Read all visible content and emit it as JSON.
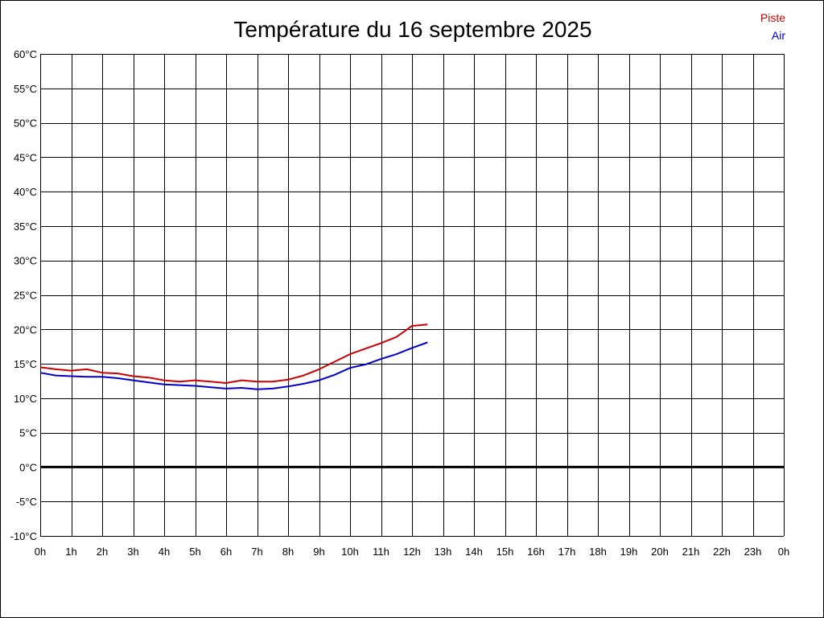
{
  "chart_data": {
    "type": "line",
    "title": "Température du 16 septembre 2025",
    "xlabel": "",
    "ylabel": "",
    "x_unit": "hour",
    "xlim": [
      0,
      24
    ],
    "ylim": [
      -10,
      60
    ],
    "grid": true,
    "legend_position": "top-right",
    "x_ticks": [
      0,
      1,
      2,
      3,
      4,
      5,
      6,
      7,
      8,
      9,
      10,
      11,
      12,
      13,
      14,
      15,
      16,
      17,
      18,
      19,
      20,
      21,
      22,
      23,
      24
    ],
    "x_tick_labels": [
      "0h",
      "1h",
      "2h",
      "3h",
      "4h",
      "5h",
      "6h",
      "7h",
      "8h",
      "9h",
      "10h",
      "11h",
      "12h",
      "13h",
      "14h",
      "15h",
      "16h",
      "17h",
      "18h",
      "19h",
      "20h",
      "21h",
      "22h",
      "23h",
      "0h"
    ],
    "y_ticks": [
      -10,
      -5,
      0,
      5,
      10,
      15,
      20,
      25,
      30,
      35,
      40,
      45,
      50,
      55,
      60
    ],
    "y_tick_labels": [
      "-10°C",
      "-5°C",
      "0°C",
      "5°C",
      "10°C",
      "15°C",
      "20°C",
      "25°C",
      "30°C",
      "35°C",
      "40°C",
      "45°C",
      "50°C",
      "55°C",
      "60°C"
    ],
    "zero_line_color": "#000000",
    "series": [
      {
        "name": "Piste",
        "color": "#cc0000",
        "x": [
          0,
          0.5,
          1,
          1.5,
          2,
          2.5,
          3,
          3.5,
          4,
          4.5,
          5,
          5.5,
          6,
          6.5,
          7,
          7.5,
          8,
          8.5,
          9,
          9.5,
          10,
          10.5,
          11,
          11.5,
          12,
          12.5
        ],
        "y": [
          14.5,
          14.2,
          14.0,
          14.2,
          13.7,
          13.6,
          13.2,
          13.0,
          12.6,
          12.4,
          12.6,
          12.4,
          12.2,
          12.6,
          12.4,
          12.4,
          12.7,
          13.3,
          14.2,
          15.3,
          16.4,
          17.2,
          18.0,
          18.9,
          20.5,
          20.7
        ]
      },
      {
        "name": "Air",
        "color": "#0000cc",
        "x": [
          0,
          0.5,
          1,
          1.5,
          2,
          2.5,
          3,
          3.5,
          4,
          4.5,
          5,
          5.5,
          6,
          6.5,
          7,
          7.5,
          8,
          8.5,
          9,
          9.5,
          10,
          10.5,
          11,
          11.5,
          12,
          12.5
        ],
        "y": [
          13.7,
          13.3,
          13.2,
          13.1,
          13.1,
          12.9,
          12.6,
          12.3,
          12.0,
          11.9,
          11.8,
          11.6,
          11.4,
          11.5,
          11.3,
          11.4,
          11.7,
          12.1,
          12.6,
          13.4,
          14.4,
          14.9,
          15.7,
          16.4,
          17.3,
          18.1
        ]
      }
    ]
  }
}
